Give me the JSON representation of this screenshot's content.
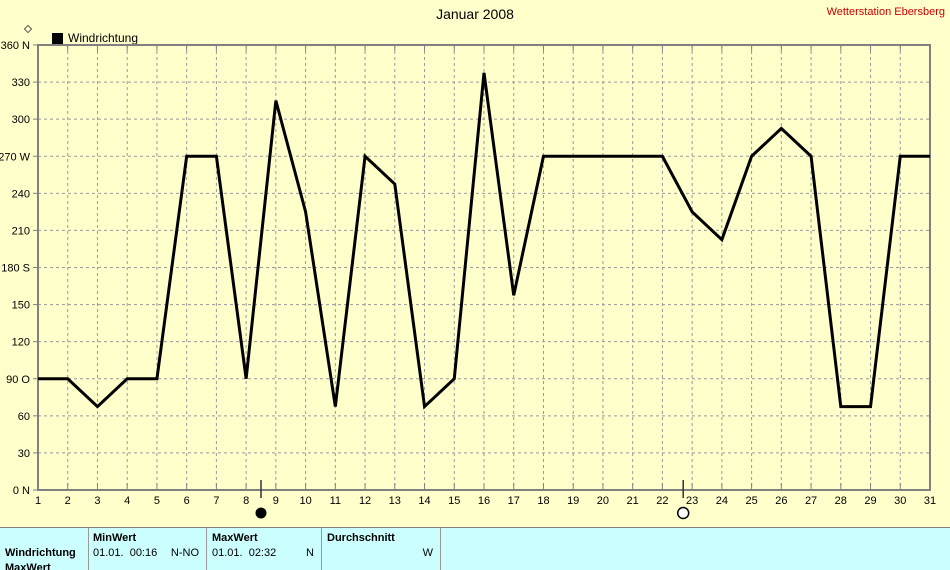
{
  "page": {
    "title": "Januar 2008",
    "station": "Wetterstation Ebersberg"
  },
  "legend": {
    "series_label": "Windrichtung",
    "marker_color": "#000000"
  },
  "chart_data": {
    "type": "line",
    "title": "Januar 2008",
    "series_name": "Windrichtung",
    "x_unit": "day of month",
    "y_unit": "wind direction, degrees",
    "x": [
      1,
      2,
      3,
      4,
      5,
      6,
      7,
      8,
      9,
      10,
      11,
      12,
      13,
      14,
      15,
      16,
      17,
      18,
      19,
      20,
      21,
      22,
      23,
      24,
      25,
      26,
      27,
      28,
      29,
      30,
      31
    ],
    "values": [
      90,
      90,
      67.5,
      90,
      90,
      270,
      270,
      90,
      315,
      225,
      67.5,
      270,
      247.5,
      67.5,
      90,
      337.5,
      157.5,
      270,
      270,
      270,
      270,
      270,
      225,
      202.5,
      270,
      292.5,
      270,
      67.5,
      67.5,
      270,
      270
    ],
    "ylim": [
      0,
      360
    ],
    "y_tick_step": 30,
    "y_tick_suffixes": {
      "360": "N",
      "270": "W",
      "180": "S",
      "90": "O",
      "0": "N"
    },
    "grid": true,
    "legend_position": "top-left",
    "line_color": "#000000",
    "moon_markers": [
      {
        "symbol": "new-moon",
        "day": 8.5
      },
      {
        "symbol": "full-moon",
        "day": 22.7
      }
    ]
  },
  "stats_table": {
    "series_label": "Windrichtung",
    "min": {
      "header": "MinWert",
      "datetime": "01.01.  00:16",
      "direction": "N-NO"
    },
    "max": {
      "header": "MaxWert",
      "datetime": "01.01.  02:32",
      "direction": "N"
    },
    "avg": {
      "header": "Durchschnitt",
      "direction": "W"
    },
    "clipped_next_row_label": "MaxWert"
  },
  "colors": {
    "background": "#ffffcc",
    "table_background": "#ccffff",
    "axis": "#808080",
    "grid": "#999999",
    "line": "#000000",
    "station_text": "#cc0000"
  }
}
